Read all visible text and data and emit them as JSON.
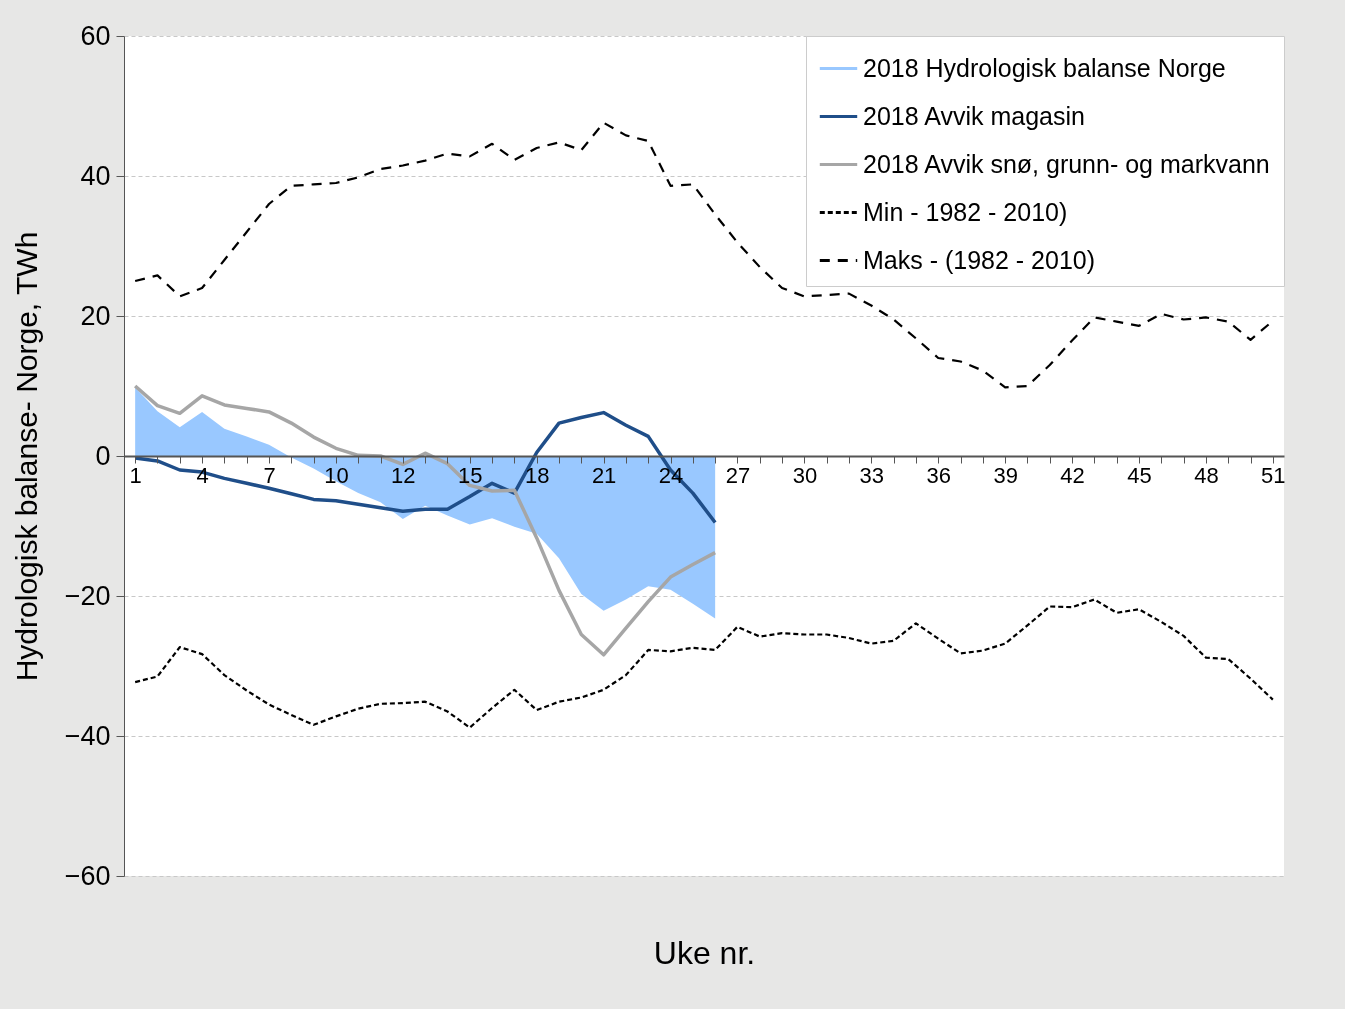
{
  "chart_data": {
    "type": "line",
    "xlabel": "Uke nr.",
    "ylabel": "Hydrologisk balanse- Norge, TWh",
    "categories": [
      "1",
      null,
      null,
      "4",
      null,
      null,
      "7",
      null,
      null,
      "10",
      null,
      null,
      "12",
      null,
      null,
      "15",
      null,
      null,
      "18",
      null,
      null,
      "21",
      null,
      null,
      "24",
      null,
      null,
      "27",
      null,
      null,
      "30",
      null,
      null,
      "33",
      null,
      null,
      "36",
      null,
      null,
      "39",
      null,
      null,
      "42",
      null,
      null,
      "45",
      null,
      null,
      "48",
      null,
      null,
      "51"
    ],
    "ylim": [
      -60,
      60
    ],
    "yticks": [
      -60,
      -40,
      -20,
      0,
      20,
      40,
      60
    ],
    "grid": "y",
    "legend": "top right",
    "series": [
      {
        "name": "2018 Hydrologisk balanse Norge",
        "type": "area",
        "color": "#99c8ff",
        "values": [
          9.8,
          6.4,
          4.1,
          6.3,
          3.9,
          2.8,
          1.6,
          -0.2,
          -1.8,
          -3.6,
          -5.3,
          -6.6,
          -9,
          -7.1,
          -8.5,
          -9.8,
          -8.9,
          -10.1,
          -11.1,
          -14.6,
          -19.7,
          -22.1,
          -20.5,
          -18.6,
          -19.1,
          -21.1,
          -23.2,
          null,
          null,
          null,
          null,
          null,
          null,
          null,
          null,
          null,
          null,
          null,
          null,
          null,
          null,
          null,
          null,
          null,
          null,
          null,
          null,
          null,
          null,
          null,
          null,
          null
        ]
      },
      {
        "name": "2018 Avvik magasin",
        "color": "#1f4e89",
        "line_style": "solid",
        "values": [
          -0.3,
          -0.7,
          -2,
          -2.3,
          -3.2,
          -3.9,
          -4.6,
          -5.4,
          -6.2,
          -6.4,
          -6.9,
          -7.4,
          -7.9,
          -7.6,
          -7.6,
          -5.8,
          -3.9,
          -5.3,
          0.5,
          4.7,
          5.5,
          6.2,
          4.4,
          2.8,
          -2,
          -5.3,
          -9.5,
          null,
          null,
          null,
          null,
          null,
          null,
          null,
          null,
          null,
          null,
          null,
          null,
          null,
          null,
          null,
          null,
          null,
          null,
          null,
          null,
          null,
          null,
          null,
          null,
          null
        ]
      },
      {
        "name": "2018 Avvik snø, grunn- og markvann",
        "color": "#a6a6a6",
        "line_style": "solid",
        "values": [
          10,
          7.2,
          6.1,
          8.6,
          7.3,
          6.8,
          6.3,
          4.7,
          2.7,
          1.1,
          0.1,
          0,
          -1.2,
          0.4,
          -1.1,
          -4.2,
          -5,
          -4.9,
          -11.7,
          -19.2,
          -25.5,
          -28.4,
          -24.6,
          -20.8,
          -17.3,
          -15.5,
          -13.8,
          null,
          null,
          null,
          null,
          null,
          null,
          null,
          null,
          null,
          null,
          null,
          null,
          null,
          null,
          null,
          null,
          null,
          null,
          null,
          null,
          null,
          null,
          null,
          null,
          null
        ]
      },
      {
        "name": "Min - 1982 - 2010)",
        "color": "#000000",
        "line_style": "dotted",
        "values": [
          -32.3,
          -31.5,
          -27.3,
          -28.3,
          -31.3,
          -33.5,
          -35.5,
          -37,
          -38.4,
          -37.2,
          -36.1,
          -35.4,
          -35.3,
          -35.1,
          -36.5,
          -38.8,
          -36,
          -33.4,
          -36.3,
          -35.1,
          -34.5,
          -33.4,
          -31.3,
          -27.7,
          -27.9,
          -27.4,
          -27.7,
          -24.4,
          -25.8,
          -25.3,
          -25.5,
          -25.5,
          -26,
          -26.8,
          -26.4,
          -23.9,
          -26.1,
          -28.2,
          -27.8,
          -26.8,
          -24.2,
          -21.5,
          -21.6,
          -20.5,
          -22.4,
          -21.9,
          -23.7,
          -25.7,
          -28.8,
          -29,
          -31.8,
          -34.8
        ]
      },
      {
        "name": "Maks - (1982 - 2010)",
        "color": "#000000",
        "line_style": "dashed",
        "values": [
          25,
          25.8,
          22.8,
          24,
          28,
          32,
          36,
          38.6,
          38.8,
          39,
          39.8,
          41,
          41.5,
          42.2,
          43.2,
          42.8,
          44.6,
          42.3,
          44,
          44.8,
          43.7,
          47.6,
          45.8,
          45,
          38.6,
          38.8,
          34.5,
          30.5,
          27,
          24,
          22.8,
          23,
          23.2,
          21.5,
          19.5,
          16.8,
          14,
          13.5,
          12.2,
          9.8,
          10,
          13,
          16.5,
          19.8,
          19.2,
          18.6,
          20.3,
          19.5,
          19.8,
          19.2,
          16.6,
          19.3
        ]
      }
    ]
  }
}
